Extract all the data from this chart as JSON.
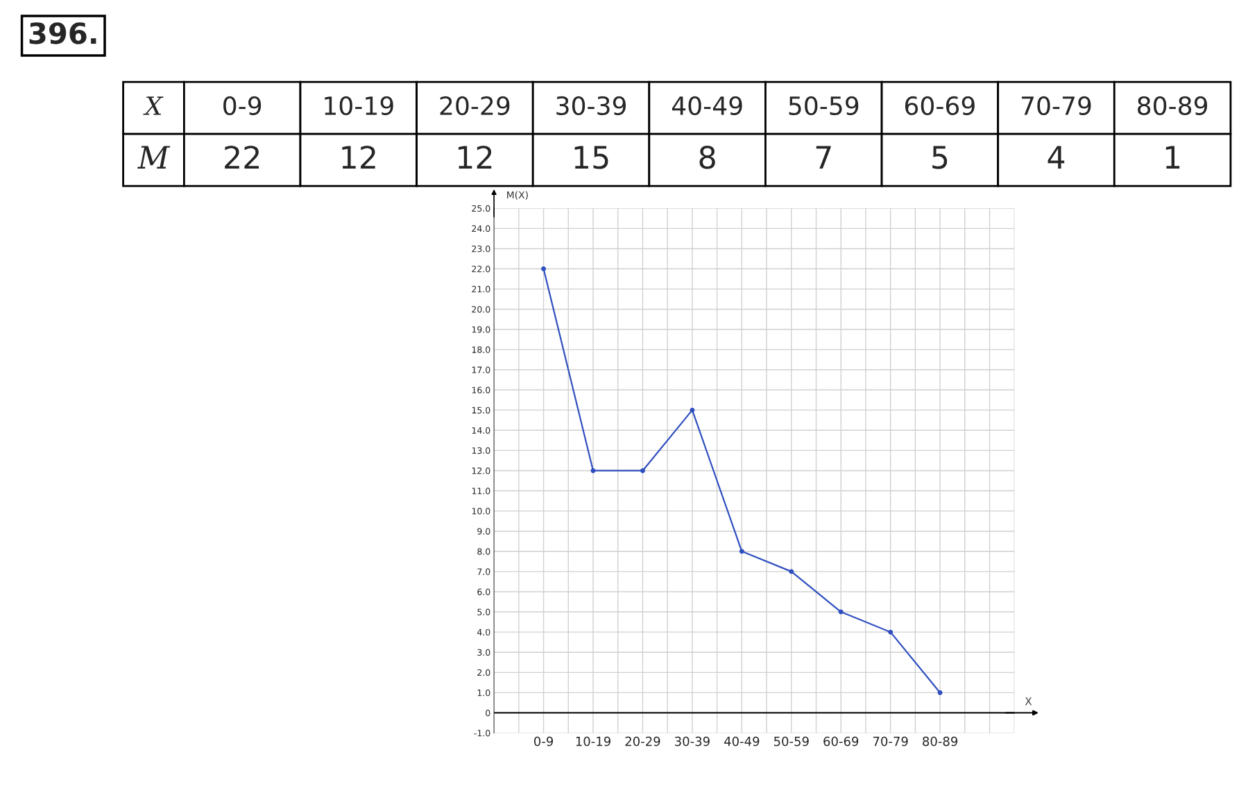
{
  "chart_data": [
    {
      "type": "other",
      "annotations": [
        "396.",
        "X",
        "M"
      ],
      "categories": [
        "0-9",
        "10-19",
        "20-29",
        "30-39",
        "40-49",
        "50-59",
        "60-69",
        "70-79",
        "80-89"
      ],
      "values": [
        22,
        12,
        12,
        15,
        8,
        7,
        5,
        4,
        1
      ],
      "data_labels": true
    },
    {
      "type": "line",
      "categories": [
        "0-9",
        "10-19",
        "20-29",
        "30-39",
        "40-49",
        "50-59",
        "60-69",
        "70-79",
        "80-89"
      ],
      "series": [
        {
          "color": "#2f4fbf",
          "values": [
            22,
            12,
            12,
            15,
            8,
            7,
            5,
            4,
            1
          ]
        }
      ],
      "ylabel": "M(X)",
      "annotations": [
        "X"
      ],
      "ylim": [
        -1,
        25
      ],
      "yticks": [
        {
          "value": -1,
          "label": "-1.0"
        },
        0,
        {
          "value": 1,
          "label": "1.0"
        },
        {
          "value": 2,
          "label": "2.0"
        },
        {
          "value": 3,
          "label": "3.0"
        },
        {
          "value": 4,
          "label": "4.0"
        },
        {
          "value": 5,
          "label": "5.0"
        },
        {
          "value": 6,
          "label": "6.0"
        },
        {
          "value": 7,
          "label": "7.0"
        },
        {
          "value": 8,
          "label": "8.0"
        },
        {
          "value": 9,
          "label": "9.0"
        },
        {
          "value": 10,
          "label": "10.0"
        },
        {
          "value": 11,
          "label": "11.0"
        },
        {
          "value": 12,
          "label": "12.0"
        },
        {
          "value": 13,
          "label": "13.0"
        },
        {
          "value": 14,
          "label": "14.0"
        },
        {
          "value": 15,
          "label": "15.0"
        },
        {
          "value": 16,
          "label": "16.0"
        },
        {
          "value": 17,
          "label": "17.0"
        },
        {
          "value": 18,
          "label": "18.0"
        },
        {
          "value": 19,
          "label": "19.0"
        },
        {
          "value": 20,
          "label": "20.0"
        },
        {
          "value": 21,
          "label": "21.0"
        },
        {
          "value": 22,
          "label": "22.0"
        },
        {
          "value": 23,
          "label": "23.0"
        },
        {
          "value": 24,
          "label": "24.0"
        },
        {
          "value": 25,
          "label": "25.0"
        }
      ],
      "grid": true,
      "marker": "circle",
      "line_style": "solid"
    }
  ]
}
